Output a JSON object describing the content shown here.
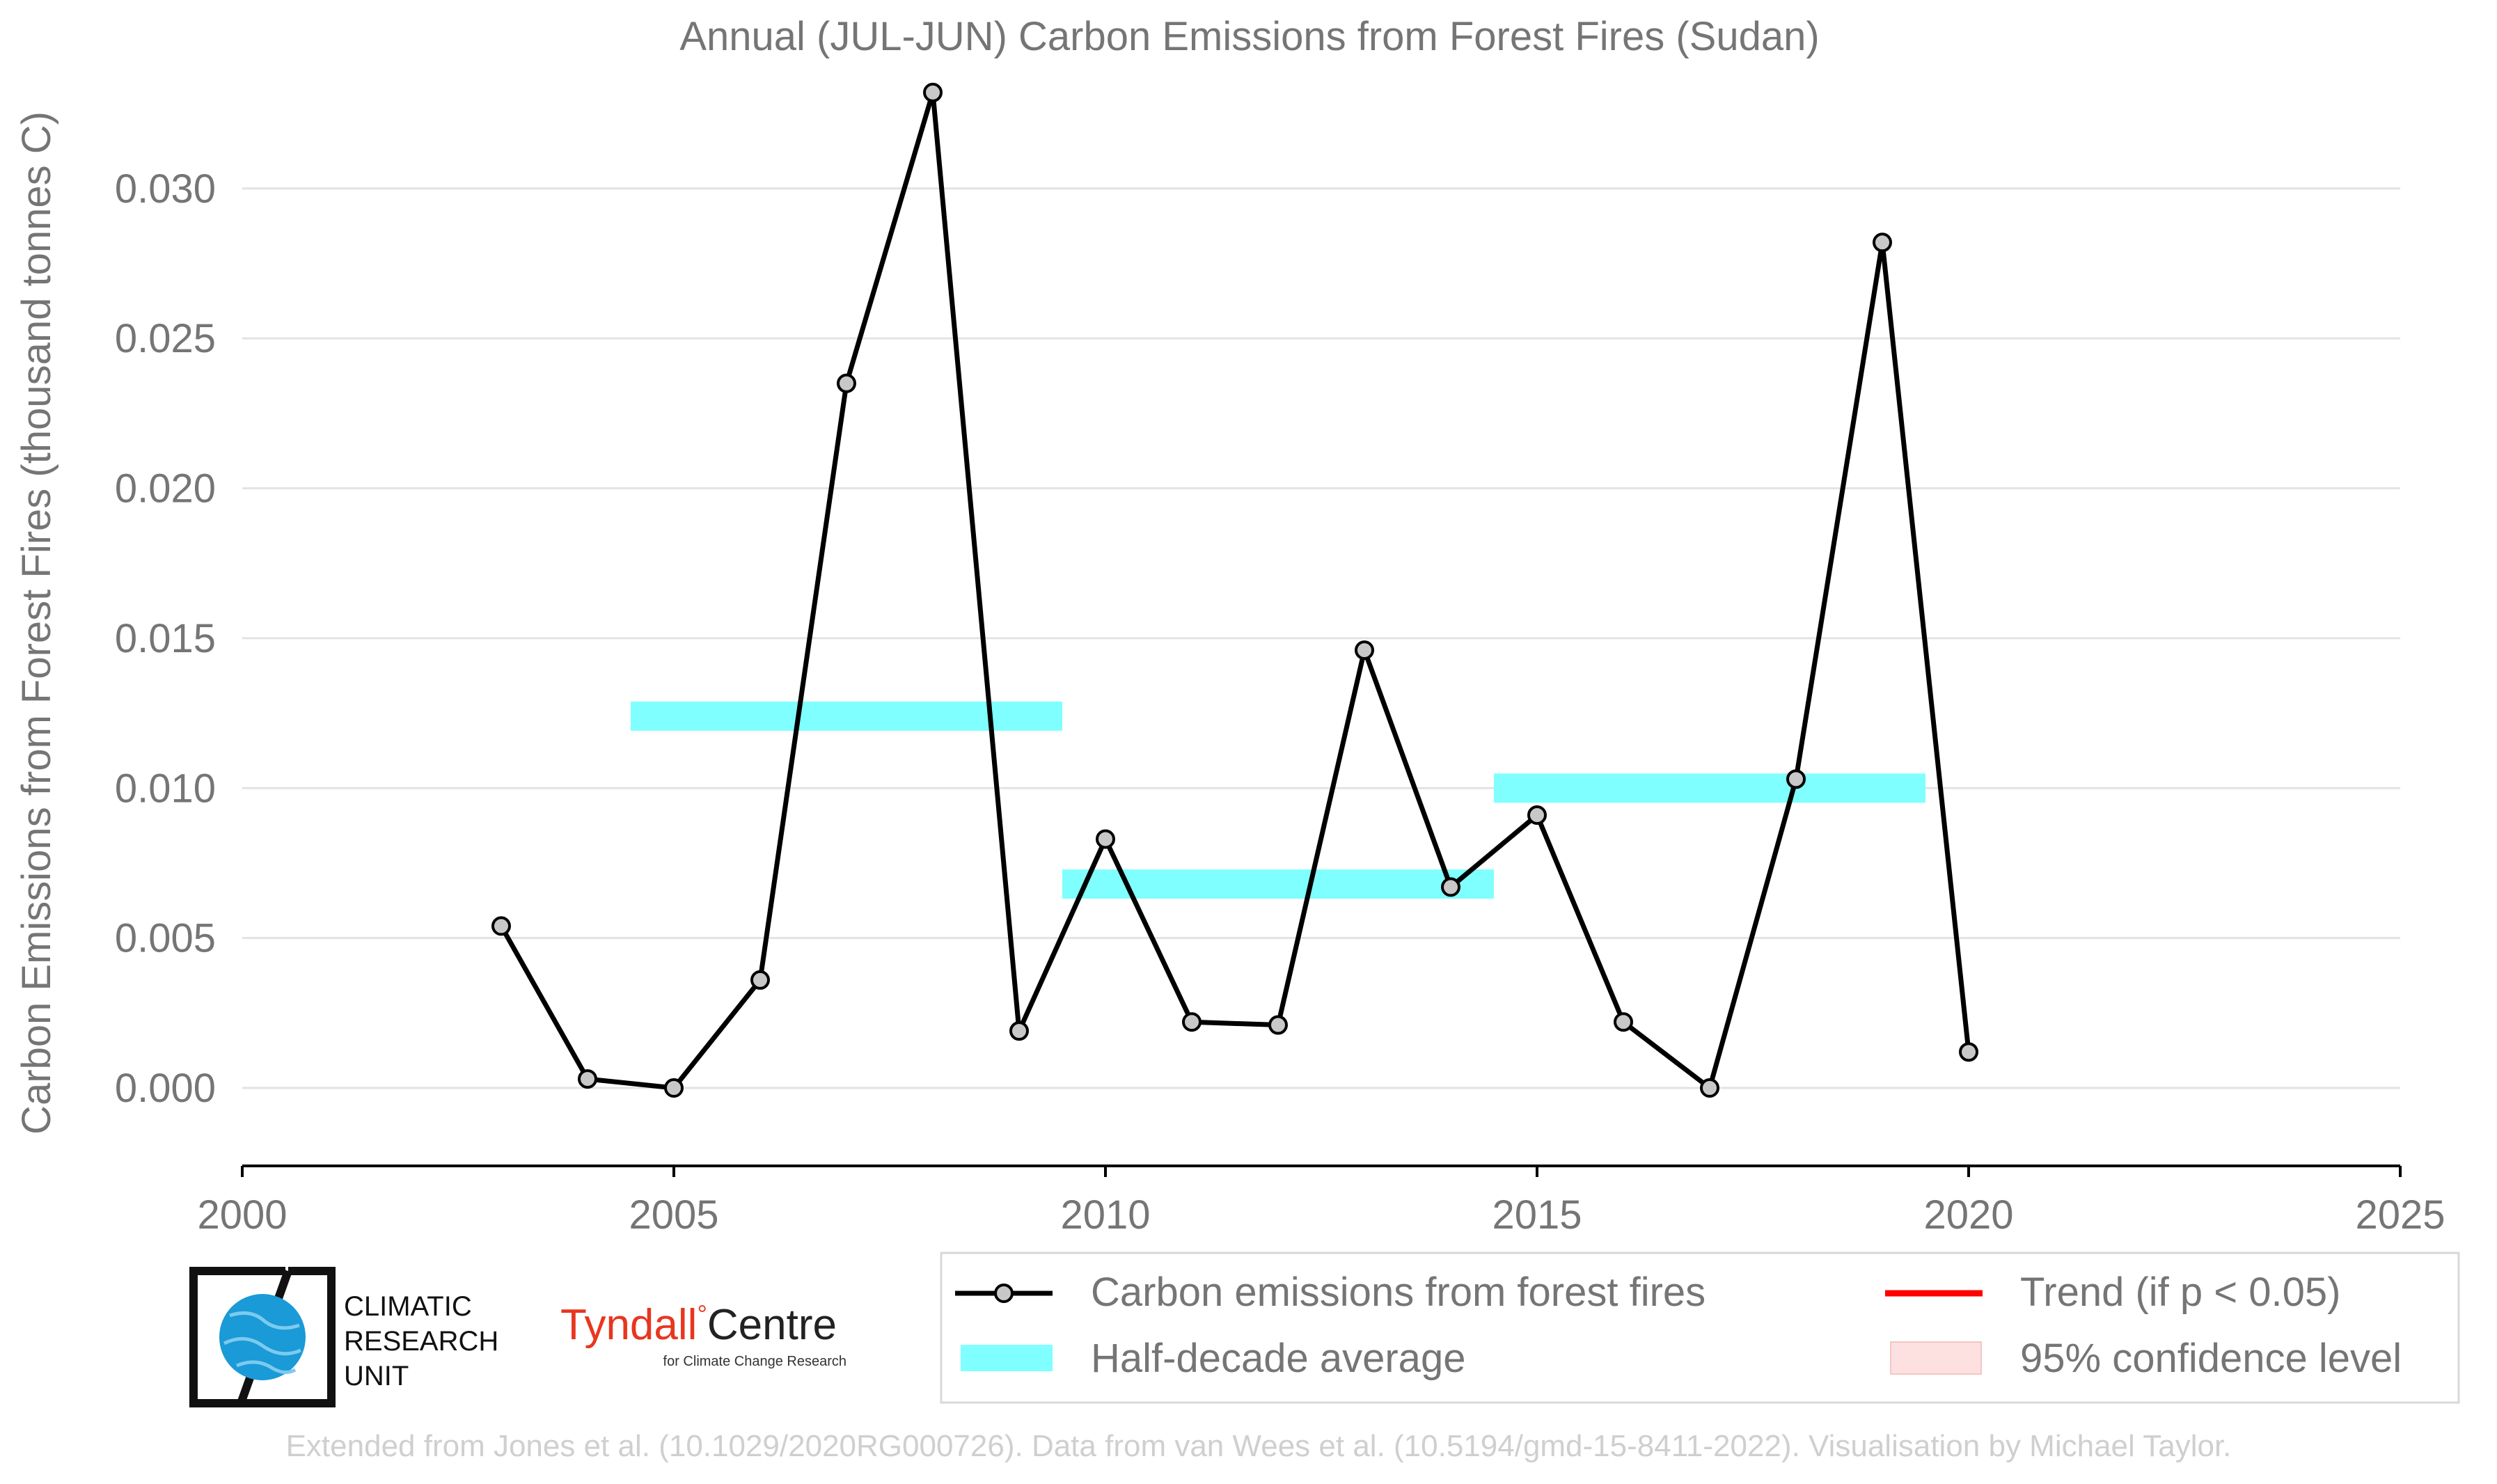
{
  "chart_data": {
    "type": "line",
    "title": "Annual (JUL-JUN) Carbon Emissions from Forest Fires (Sudan)",
    "ylabel": "Carbon Emissions from Forest Fires (thousand tonnes C)",
    "xlabel": "",
    "xlim": [
      2000,
      2025
    ],
    "ylim": [
      -0.0026,
      0.0335
    ],
    "x_ticks": [
      "2000",
      "2005",
      "2010",
      "2015",
      "2020",
      "2025"
    ],
    "y_ticks": [
      "0.000",
      "0.005",
      "0.010",
      "0.015",
      "0.020",
      "0.025",
      "0.030"
    ],
    "grid": true,
    "series": [
      {
        "name": "Carbon emissions from forest fires",
        "color": "#000000",
        "marker_color": "#c8c8c8",
        "x": [
          2003,
          2004,
          2005,
          2006,
          2007,
          2008,
          2009,
          2010,
          2011,
          2012,
          2013,
          2014,
          2015,
          2016,
          2017,
          2018,
          2019,
          2020
        ],
        "y": [
          0.0054,
          0.0003,
          0.0,
          0.0036,
          0.0235,
          0.0332,
          0.0019,
          0.0083,
          0.0022,
          0.0021,
          0.0146,
          0.0067,
          0.0091,
          0.0022,
          0.0,
          0.0103,
          0.0282,
          0.0012
        ]
      }
    ],
    "half_decade_average": {
      "name": "Half-decade average",
      "color": "#7fffff",
      "segments": [
        {
          "x_start": 2004.5,
          "x_end": 2009.5,
          "value": 0.0124
        },
        {
          "x_start": 2009.5,
          "x_end": 2014.5,
          "value": 0.0068
        },
        {
          "x_start": 2014.5,
          "x_end": 2019.5,
          "value": 0.01
        }
      ]
    },
    "legend": {
      "placement": "bottom-right",
      "entries": [
        {
          "label": "Carbon emissions from forest fires",
          "kind": "line-marker",
          "color": "#000000"
        },
        {
          "label": "Trend (if p < 0.05)",
          "kind": "line",
          "color": "#ff0000"
        },
        {
          "label": "Half-decade average",
          "kind": "patch",
          "color": "#7fffff"
        },
        {
          "label": "95% confidence level",
          "kind": "patch",
          "color": "#fde0e0"
        }
      ]
    },
    "footer": "Extended from Jones et al. (10.1029/2020RG000726). Data from van Wees et al. (10.5194/gmd-15-8411-2022). Visualisation by Michael Taylor."
  },
  "logos": {
    "cru_lines": [
      "CLIMATIC",
      "RESEARCH",
      "UNIT"
    ],
    "tyndall_red": "Tyndall",
    "tyndall_rest": "Centre",
    "tyndall_sub": "for Climate Change Research"
  }
}
